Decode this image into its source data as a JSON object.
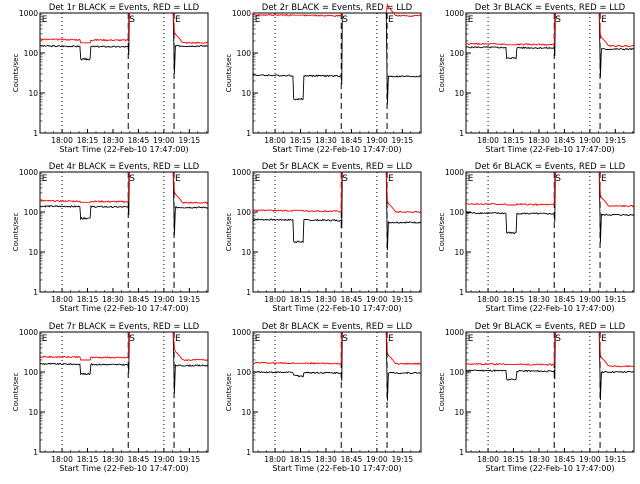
{
  "shared": {
    "xlabel": "Start Time (22-Feb-10 17:47:00)",
    "ylabel": "Counts/sec",
    "x_ticks": [
      "18:00",
      "18:15",
      "18:30",
      "18:45",
      "19:00",
      "19:15"
    ],
    "y_ticks": [
      "1",
      "10",
      "100",
      "1000"
    ],
    "marker_start": "S",
    "marker_end": "E",
    "marker_left": "E",
    "colors": {
      "events": "#000000",
      "lld": "#ff0000"
    }
  },
  "chart_data": [
    {
      "type": "line",
      "title": "Det 1r BLACK = Events, RED = LLD",
      "scale": "log",
      "ylim": [
        1,
        1000
      ],
      "series": [
        {
          "name": "Events",
          "color": "#000000",
          "base": 150,
          "dip_min": 70,
          "post": 150
        },
        {
          "name": "LLD",
          "color": "#ff0000",
          "base": 220,
          "post": 180
        }
      ],
      "gap_lld": 1000,
      "dip_lld": 180
    },
    {
      "type": "line",
      "title": "Det 2r BLACK = Events, RED = LLD",
      "scale": "log",
      "ylim": [
        1,
        1000
      ],
      "series": [
        {
          "name": "Events",
          "color": "#000000",
          "base": 28,
          "dip_min": 7,
          "post": 26
        },
        {
          "name": "LLD",
          "color": "#ff0000",
          "base": 900,
          "post": 850
        }
      ],
      "gap_lld": 950,
      "dip_lld": 880
    },
    {
      "type": "line",
      "title": "Det 3r BLACK = Events, RED = LLD",
      "scale": "log",
      "ylim": [
        1,
        1000
      ],
      "series": [
        {
          "name": "Events",
          "color": "#000000",
          "base": 140,
          "dip_min": 75,
          "post": 125
        },
        {
          "name": "LLD",
          "color": "#ff0000",
          "base": 170,
          "post": 150
        }
      ],
      "gap_lld": 1000,
      "dip_lld": 160
    },
    {
      "type": "line",
      "title": "Det 4r BLACK = Events, RED = LLD",
      "scale": "log",
      "ylim": [
        1,
        1000
      ],
      "series": [
        {
          "name": "Events",
          "color": "#000000",
          "base": 140,
          "dip_min": 70,
          "post": 130
        },
        {
          "name": "LLD",
          "color": "#ff0000",
          "base": 190,
          "post": 170
        }
      ],
      "gap_lld": 1000,
      "dip_lld": 175
    },
    {
      "type": "line",
      "title": "Det 5r BLACK = Events, RED = LLD",
      "scale": "log",
      "ylim": [
        1,
        1000
      ],
      "series": [
        {
          "name": "Events",
          "color": "#000000",
          "base": 65,
          "dip_min": 18,
          "post": 55
        },
        {
          "name": "LLD",
          "color": "#ff0000",
          "base": 110,
          "post": 100
        }
      ],
      "gap_lld": 1000,
      "dip_lld": 110
    },
    {
      "type": "line",
      "title": "Det 6r BLACK = Events, RED = LLD",
      "scale": "log",
      "ylim": [
        1,
        1000
      ],
      "series": [
        {
          "name": "Events",
          "color": "#000000",
          "base": 95,
          "dip_min": 30,
          "post": 85
        },
        {
          "name": "LLD",
          "color": "#ff0000",
          "base": 160,
          "post": 140
        }
      ],
      "gap_lld": 1000,
      "dip_lld": 150
    },
    {
      "type": "line",
      "title": "Det 7r BLACK = Events, RED = LLD",
      "scale": "log",
      "ylim": [
        1,
        1000
      ],
      "series": [
        {
          "name": "Events",
          "color": "#000000",
          "base": 160,
          "dip_min": 90,
          "post": 145
        },
        {
          "name": "LLD",
          "color": "#ff0000",
          "base": 240,
          "post": 200
        }
      ],
      "gap_lld": 1000,
      "dip_lld": 200
    },
    {
      "type": "line",
      "title": "Det 8r BLACK = Events, RED = LLD",
      "scale": "log",
      "ylim": [
        1,
        1000
      ],
      "series": [
        {
          "name": "Events",
          "color": "#000000",
          "base": 100,
          "dip_min": 80,
          "post": 95
        },
        {
          "name": "LLD",
          "color": "#ff0000",
          "base": 170,
          "post": 160
        }
      ],
      "gap_lld": 1000,
      "dip_lld": 165
    },
    {
      "type": "line",
      "title": "Det 9r BLACK = Events, RED = LLD",
      "scale": "log",
      "ylim": [
        1,
        1000
      ],
      "series": [
        {
          "name": "Events",
          "color": "#000000",
          "base": 110,
          "dip_min": 65,
          "post": 100
        },
        {
          "name": "LLD",
          "color": "#ff0000",
          "base": 160,
          "post": 140
        }
      ],
      "gap_lld": 1000,
      "dip_lld": 155
    }
  ]
}
